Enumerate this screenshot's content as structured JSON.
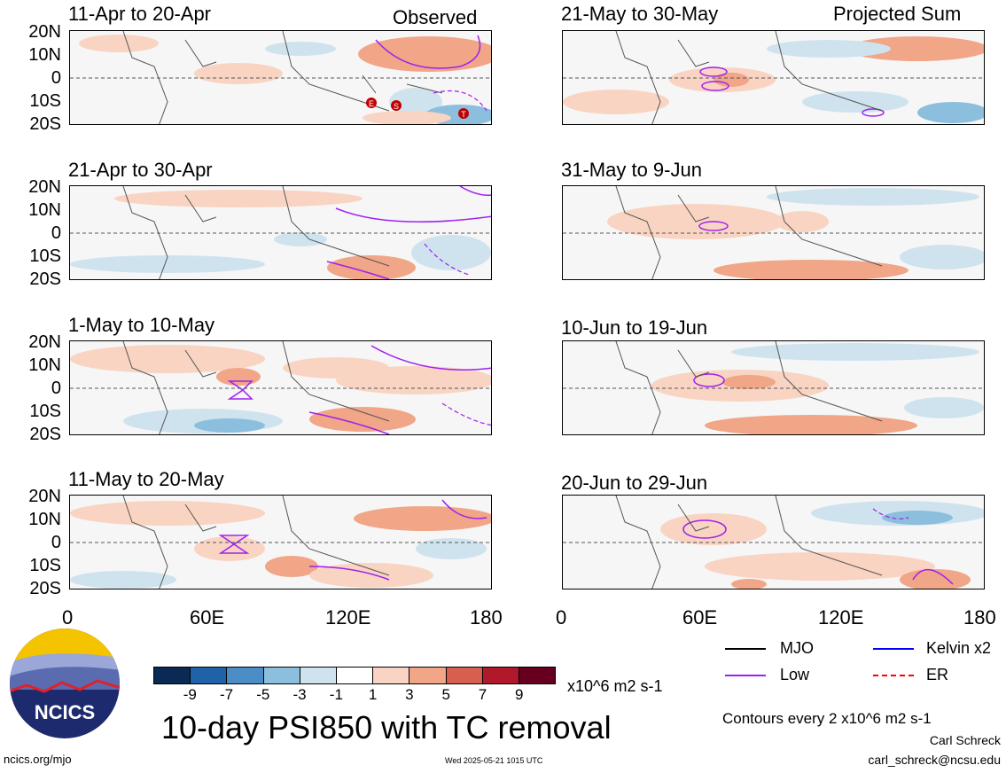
{
  "panels": [
    {
      "title": "11-Apr to 20-Apr",
      "tag": "Observed",
      "tc_markers": [
        "E",
        "S",
        "T"
      ]
    },
    {
      "title": "21-Apr to 30-Apr",
      "tag": ""
    },
    {
      "title": "1-May to 10-May",
      "tag": ""
    },
    {
      "title": "11-May to 20-May",
      "tag": ""
    },
    {
      "title": "21-May to 30-May",
      "tag": "Projected Sum"
    },
    {
      "title": "31-May to 9-Jun",
      "tag": ""
    },
    {
      "title": "10-Jun to 19-Jun",
      "tag": ""
    },
    {
      "title": "20-Jun to 29-Jun",
      "tag": ""
    }
  ],
  "lat_labels": [
    "20N",
    "10N",
    "0",
    "10S",
    "20S"
  ],
  "lon_labels": [
    "0",
    "60E",
    "120E",
    "180"
  ],
  "colorbar": {
    "ticks": [
      "-9",
      "-7",
      "-5",
      "-3",
      "-1",
      "1",
      "3",
      "5",
      "7",
      "9"
    ],
    "colors": [
      "#0a2a55",
      "#1f62a8",
      "#4b8ec6",
      "#8cbfdd",
      "#cfe3ef",
      "#ffffff",
      "#f9d4c2",
      "#f0a687",
      "#d6604d",
      "#b2182b",
      "#67001f"
    ],
    "units": "x10^6 m2 s-1"
  },
  "main_title": "10-day PSI850 with TC removal",
  "legend": {
    "items": [
      {
        "label": "MJO",
        "color": "#000000",
        "style": "solid"
      },
      {
        "label": "Kelvin x2",
        "color": "#0000ff",
        "style": "solid"
      },
      {
        "label": "Low",
        "color": "#a020f0",
        "style": "solid"
      },
      {
        "label": "ER",
        "color": "#ff0000",
        "style": "dashed"
      }
    ],
    "contour_note": "Contours every 2 x10^6 m2 s-1"
  },
  "logo": {
    "text": "NCICS"
  },
  "footer": {
    "url": "ncics.org/mjo",
    "timestamp": "Wed 2025-05-21 1015 UTC",
    "author": "Carl Schreck",
    "email": "carl_schreck@ncsu.edu"
  }
}
